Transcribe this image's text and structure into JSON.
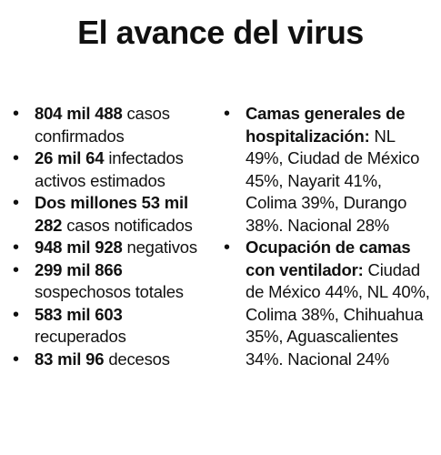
{
  "title": "El avance del virus",
  "left_items": [
    {
      "bold": "804 mil 488",
      "text": " casos confirmados"
    },
    {
      "bold": "26 mil 64",
      "text": " infectados activos estimados"
    },
    {
      "bold": "Dos millones 53 mil 282",
      "text": " casos notificados"
    },
    {
      "bold": "948 mil 928",
      "text": " negativos"
    },
    {
      "bold": "299 mil 866",
      "text": " sospechosos totales"
    },
    {
      "bold": "583 mil 603",
      "text": " recuperados"
    },
    {
      "bold": "83 mil 96",
      "text": " decesos"
    }
  ],
  "right_items": [
    {
      "bold": "Camas generales de hospitalización:",
      "text": " NL 49%, Ciudad de México 45%, Nayarit 41%, Colima 39%, Durango 38%. Nacional 28%"
    },
    {
      "bold": "Ocupación de camas con ventilador:",
      "text": " Ciudad de México 44%, NL 40%, Colima 38%, Chihuahua 35%, Aguascalientes 34%. Nacional 24%"
    }
  ],
  "bullet_glyph": "•"
}
